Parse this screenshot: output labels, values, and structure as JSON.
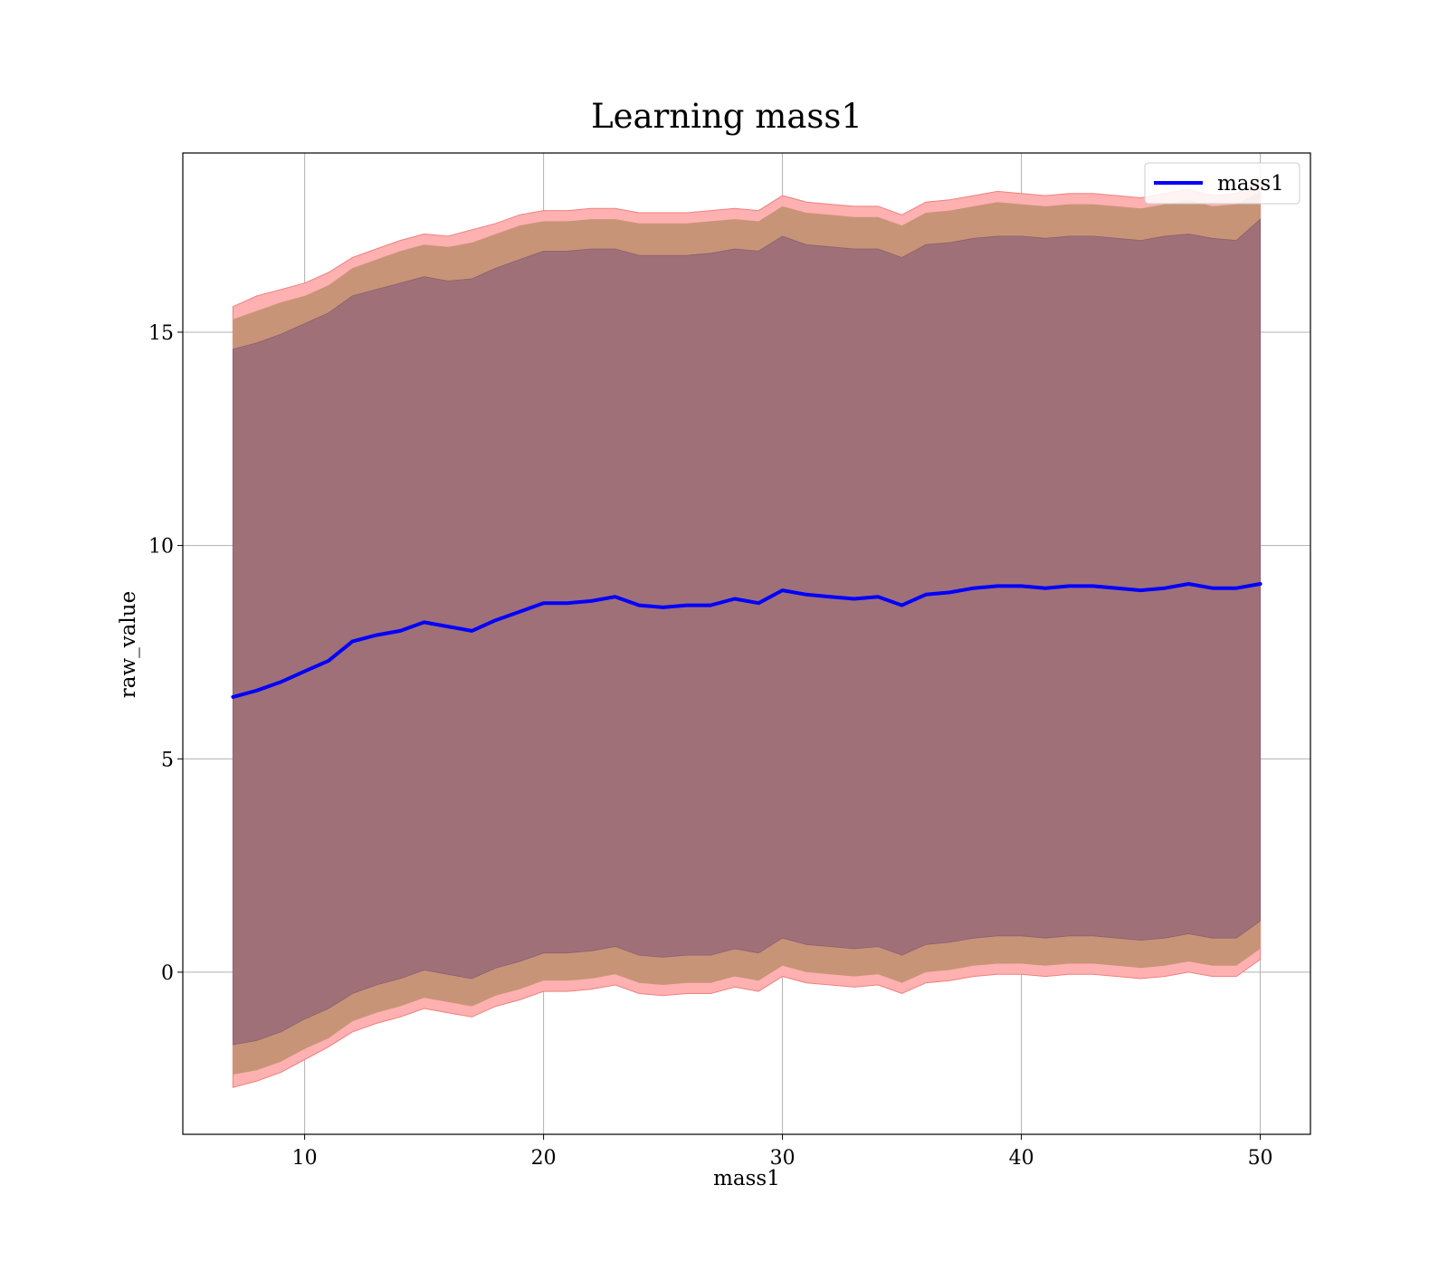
{
  "chart_data": {
    "type": "area",
    "title": "Learning mass1",
    "xlabel": "mass1",
    "ylabel": "raw_value",
    "xlim": [
      4.9,
      52.1
    ],
    "ylim": [
      -3.8,
      19.2
    ],
    "x_ticks": [
      10,
      20,
      30,
      40,
      50
    ],
    "y_ticks": [
      0,
      5,
      10,
      15
    ],
    "grid": true,
    "legend": {
      "position": "top-right",
      "entries": [
        "mass1"
      ]
    },
    "colors": {
      "line": "#0000ff",
      "band_outer": "#ffb0b0",
      "band_middle": "#c89478",
      "band_inner": "#a07078",
      "grid": "#b0b0b0"
    },
    "series": [
      {
        "name": "mass1",
        "x": [
          7,
          8,
          9,
          10,
          11,
          12,
          13,
          14,
          15,
          16,
          17,
          18,
          19,
          20,
          21,
          22,
          23,
          24,
          25,
          26,
          27,
          28,
          29,
          30,
          31,
          32,
          33,
          34,
          35,
          36,
          37,
          38,
          39,
          40,
          41,
          42,
          43,
          44,
          45,
          46,
          47,
          48,
          49,
          50
        ],
        "y": [
          6.45,
          6.6,
          6.8,
          7.05,
          7.3,
          7.75,
          7.9,
          8.0,
          8.2,
          8.1,
          8.0,
          8.25,
          8.45,
          8.65,
          8.65,
          8.7,
          8.8,
          8.6,
          8.55,
          8.6,
          8.6,
          8.75,
          8.65,
          8.95,
          8.85,
          8.8,
          8.75,
          8.8,
          8.6,
          8.85,
          8.9,
          9.0,
          9.05,
          9.05,
          9.0,
          9.05,
          9.05,
          9.0,
          8.95,
          9.0,
          9.1,
          9.0,
          9.0,
          9.1
        ],
        "band_outer_upper": [
          15.6,
          15.85,
          16.0,
          16.15,
          16.4,
          16.75,
          16.95,
          17.15,
          17.3,
          17.25,
          17.4,
          17.55,
          17.75,
          17.85,
          17.85,
          17.9,
          17.9,
          17.8,
          17.8,
          17.8,
          17.85,
          17.9,
          17.85,
          18.2,
          18.05,
          18.0,
          17.95,
          17.95,
          17.75,
          18.05,
          18.1,
          18.2,
          18.3,
          18.25,
          18.2,
          18.25,
          18.25,
          18.2,
          18.15,
          18.25,
          18.35,
          18.2,
          18.25,
          18.6
        ],
        "band_middle_upper": [
          15.3,
          15.5,
          15.7,
          15.85,
          16.1,
          16.5,
          16.7,
          16.9,
          17.05,
          17.0,
          17.1,
          17.3,
          17.5,
          17.6,
          17.6,
          17.65,
          17.65,
          17.55,
          17.55,
          17.55,
          17.6,
          17.65,
          17.6,
          17.95,
          17.8,
          17.75,
          17.7,
          17.7,
          17.5,
          17.8,
          17.85,
          17.95,
          18.05,
          18.0,
          17.95,
          18.0,
          18.0,
          17.95,
          17.9,
          18.0,
          18.1,
          17.95,
          18.0,
          18.3
        ],
        "band_inner_upper": [
          14.6,
          14.75,
          14.95,
          15.2,
          15.45,
          15.85,
          16.0,
          16.15,
          16.3,
          16.2,
          16.25,
          16.5,
          16.7,
          16.9,
          16.9,
          16.95,
          16.95,
          16.8,
          16.8,
          16.8,
          16.85,
          16.95,
          16.9,
          17.25,
          17.05,
          17.0,
          16.95,
          16.95,
          16.75,
          17.05,
          17.1,
          17.2,
          17.25,
          17.25,
          17.2,
          17.25,
          17.25,
          17.2,
          17.15,
          17.25,
          17.3,
          17.2,
          17.15,
          17.65
        ],
        "band_inner_lower": [
          -1.7,
          -1.6,
          -1.4,
          -1.1,
          -0.85,
          -0.5,
          -0.3,
          -0.15,
          0.05,
          -0.05,
          -0.15,
          0.1,
          0.25,
          0.45,
          0.45,
          0.5,
          0.6,
          0.4,
          0.35,
          0.4,
          0.4,
          0.55,
          0.45,
          0.8,
          0.65,
          0.6,
          0.55,
          0.6,
          0.4,
          0.65,
          0.7,
          0.8,
          0.85,
          0.85,
          0.8,
          0.85,
          0.85,
          0.8,
          0.75,
          0.8,
          0.9,
          0.8,
          0.8,
          1.2
        ],
        "band_middle_lower": [
          -2.4,
          -2.3,
          -2.1,
          -1.8,
          -1.55,
          -1.15,
          -0.95,
          -0.8,
          -0.6,
          -0.7,
          -0.8,
          -0.55,
          -0.4,
          -0.2,
          -0.2,
          -0.15,
          -0.05,
          -0.25,
          -0.3,
          -0.25,
          -0.25,
          -0.1,
          -0.2,
          0.15,
          0.0,
          -0.05,
          -0.1,
          -0.05,
          -0.25,
          0.0,
          0.05,
          0.15,
          0.2,
          0.2,
          0.15,
          0.2,
          0.2,
          0.15,
          0.1,
          0.15,
          0.25,
          0.15,
          0.15,
          0.55
        ],
        "band_outer_lower": [
          -2.7,
          -2.55,
          -2.35,
          -2.05,
          -1.75,
          -1.4,
          -1.2,
          -1.05,
          -0.85,
          -0.95,
          -1.05,
          -0.8,
          -0.65,
          -0.45,
          -0.45,
          -0.4,
          -0.3,
          -0.5,
          -0.55,
          -0.5,
          -0.5,
          -0.35,
          -0.45,
          -0.1,
          -0.25,
          -0.3,
          -0.35,
          -0.3,
          -0.5,
          -0.25,
          -0.2,
          -0.1,
          -0.05,
          -0.05,
          -0.1,
          -0.05,
          -0.05,
          -0.1,
          -0.15,
          -0.1,
          0.0,
          -0.1,
          -0.1,
          0.3
        ]
      }
    ]
  }
}
